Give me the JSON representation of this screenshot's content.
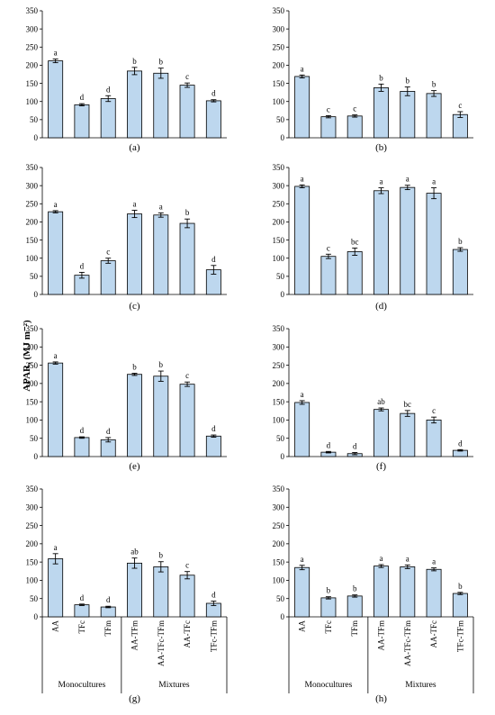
{
  "figure": {
    "ylabel": "APAR, (MJ m⁻²)",
    "categories": [
      "AA",
      "TFc",
      "TFm",
      "AA-TFm",
      "AA-TFc-TFm",
      "AA-TFc",
      "TFc-TFm"
    ],
    "group_labels": [
      "Monocultures",
      "Mixtures"
    ],
    "yticks": [
      0,
      50,
      100,
      150,
      200,
      250,
      300,
      350
    ],
    "bar_color": "#bdd7ee",
    "bar_stroke": "#000000"
  },
  "chart_data": [
    {
      "type": "bar",
      "panel": "(a)",
      "ylim": [
        0,
        350
      ],
      "categories": [
        "AA",
        "TFc",
        "TFm",
        "AA-TFm",
        "AA-TFc-TFm",
        "AA-TFc",
        "TFc-TFm"
      ],
      "values": [
        212,
        91,
        108,
        184,
        178,
        145,
        102
      ],
      "errors": [
        5,
        3,
        8,
        10,
        14,
        6,
        3
      ],
      "letters": [
        "a",
        "d",
        "d",
        "b",
        "b",
        "c",
        "d"
      ]
    },
    {
      "type": "bar",
      "panel": "(b)",
      "ylim": [
        0,
        350
      ],
      "categories": [
        "AA",
        "TFc",
        "TFm",
        "AA-TFm",
        "AA-TFc-TFm",
        "AA-TFc",
        "TFc-TFm"
      ],
      "values": [
        169,
        58,
        60,
        138,
        128,
        122,
        64
      ],
      "errors": [
        4,
        3,
        3,
        10,
        12,
        8,
        8
      ],
      "letters": [
        "a",
        "c",
        "c",
        "b",
        "b",
        "b",
        "c"
      ]
    },
    {
      "type": "bar",
      "panel": "(c)",
      "ylim": [
        0,
        350
      ],
      "categories": [
        "AA",
        "TFc",
        "TFm",
        "AA-TFm",
        "AA-TFc-TFm",
        "AA-TFc",
        "TFc-TFm"
      ],
      "values": [
        228,
        53,
        93,
        222,
        219,
        196,
        68
      ],
      "errors": [
        3,
        8,
        7,
        10,
        6,
        12,
        12
      ],
      "letters": [
        "a",
        "d",
        "c",
        "a",
        "a",
        "b",
        "d"
      ]
    },
    {
      "type": "bar",
      "panel": "(d)",
      "ylim": [
        0,
        350
      ],
      "categories": [
        "AA",
        "TFc",
        "TFm",
        "AA-TFm",
        "AA-TFc-TFm",
        "AA-TFc",
        "TFc-TFm"
      ],
      "values": [
        298,
        105,
        118,
        286,
        295,
        279,
        124
      ],
      "errors": [
        4,
        6,
        10,
        8,
        6,
        15,
        5
      ],
      "letters": [
        "a",
        "c",
        "bc",
        "a",
        "a",
        "a",
        "b"
      ]
    },
    {
      "type": "bar",
      "panel": "(e)",
      "ylim": [
        0,
        350
      ],
      "categories": [
        "AA",
        "TFc",
        "TFm",
        "AA-TFm",
        "AA-TFc-TFm",
        "AA-TFc",
        "TFc-TFm"
      ],
      "values": [
        256,
        52,
        46,
        225,
        220,
        198,
        56
      ],
      "errors": [
        3,
        2,
        6,
        3,
        14,
        6,
        3
      ],
      "letters": [
        "a",
        "d",
        "d",
        "b",
        "b",
        "c",
        "d"
      ]
    },
    {
      "type": "bar",
      "panel": "(f)",
      "ylim": [
        0,
        350
      ],
      "categories": [
        "AA",
        "TFc",
        "TFm",
        "AA-TFm",
        "AA-TFc-TFm",
        "AA-TFc",
        "TFc-TFm"
      ],
      "values": [
        148,
        12,
        8,
        129,
        118,
        100,
        17
      ],
      "errors": [
        5,
        2,
        3,
        4,
        8,
        8,
        2
      ],
      "letters": [
        "a",
        "d",
        "d",
        "ab",
        "bc",
        "c",
        "d"
      ]
    },
    {
      "type": "bar",
      "panel": "(g)",
      "ylim": [
        0,
        350
      ],
      "categories": [
        "AA",
        "TFc",
        "TFm",
        "AA-TFm",
        "AA-TFc-TFm",
        "AA-TFc",
        "TFc-TFm"
      ],
      "values": [
        159,
        33,
        27,
        147,
        137,
        114,
        37
      ],
      "errors": [
        14,
        2,
        2,
        14,
        14,
        10,
        6
      ],
      "letters": [
        "a",
        "d",
        "d",
        "ab",
        "b",
        "c",
        "d"
      ]
    },
    {
      "type": "bar",
      "panel": "(h)",
      "ylim": [
        0,
        350
      ],
      "categories": [
        "AA",
        "TFc",
        "TFm",
        "AA-TFm",
        "AA-TFc-TFm",
        "AA-TFc",
        "TFc-TFm"
      ],
      "values": [
        135,
        52,
        57,
        139,
        137,
        130,
        64
      ],
      "errors": [
        6,
        3,
        3,
        4,
        5,
        4,
        3
      ],
      "letters": [
        "a",
        "b",
        "b",
        "a",
        "a",
        "a",
        "b"
      ]
    }
  ]
}
